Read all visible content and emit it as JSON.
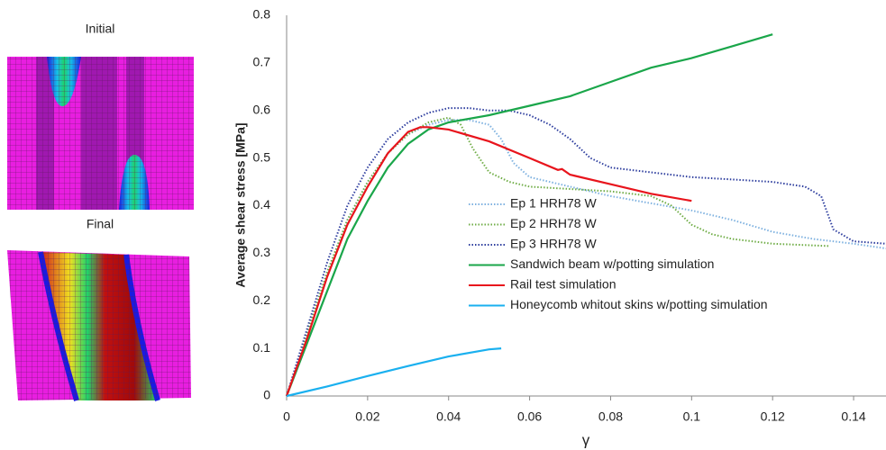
{
  "figure_labels": [
    "Initial",
    "Final"
  ],
  "chart_data": {
    "type": "line",
    "xlabel": "γ",
    "ylabel": "Average shear stress [MPa]",
    "xlim": [
      0,
      0.148
    ],
    "ylim": [
      0,
      0.8
    ],
    "xticks": [
      0,
      0.02,
      0.04,
      0.06,
      0.08,
      0.1,
      0.12,
      0.14
    ],
    "yticks": [
      0,
      0.1,
      0.2,
      0.3,
      0.4,
      0.5,
      0.6,
      0.7,
      0.8
    ],
    "grid": false,
    "series": [
      {
        "name": "Ep 1 HRH78 W",
        "color": "#7fb2e0",
        "style": "dotted",
        "x": [
          0,
          0.005,
          0.01,
          0.015,
          0.02,
          0.025,
          0.03,
          0.035,
          0.04,
          0.045,
          0.05,
          0.053,
          0.056,
          0.06,
          0.07,
          0.08,
          0.09,
          0.1,
          0.11,
          0.12,
          0.13,
          0.14,
          0.148
        ],
        "values": [
          0,
          0.13,
          0.26,
          0.37,
          0.45,
          0.51,
          0.55,
          0.57,
          0.58,
          0.58,
          0.57,
          0.54,
          0.49,
          0.46,
          0.44,
          0.42,
          0.405,
          0.39,
          0.37,
          0.345,
          0.33,
          0.32,
          0.31
        ]
      },
      {
        "name": "Ep 2 HRH78 W",
        "color": "#70ad47",
        "style": "dotted",
        "x": [
          0,
          0.005,
          0.01,
          0.015,
          0.02,
          0.025,
          0.03,
          0.035,
          0.04,
          0.043,
          0.046,
          0.05,
          0.055,
          0.06,
          0.07,
          0.08,
          0.09,
          0.095,
          0.1,
          0.105,
          0.11,
          0.12,
          0.134
        ],
        "values": [
          0,
          0.13,
          0.26,
          0.37,
          0.45,
          0.51,
          0.55,
          0.575,
          0.585,
          0.57,
          0.52,
          0.47,
          0.45,
          0.44,
          0.435,
          0.43,
          0.42,
          0.4,
          0.36,
          0.34,
          0.33,
          0.32,
          0.315
        ]
      },
      {
        "name": "Ep 3 HRH78 W",
        "color": "#2f3f9f",
        "style": "dotted",
        "x": [
          0,
          0.005,
          0.01,
          0.015,
          0.02,
          0.025,
          0.03,
          0.035,
          0.04,
          0.045,
          0.05,
          0.055,
          0.06,
          0.065,
          0.07,
          0.075,
          0.08,
          0.09,
          0.1,
          0.11,
          0.12,
          0.128,
          0.132,
          0.135,
          0.14,
          0.148
        ],
        "values": [
          0,
          0.14,
          0.28,
          0.4,
          0.48,
          0.54,
          0.575,
          0.595,
          0.605,
          0.605,
          0.6,
          0.6,
          0.59,
          0.57,
          0.54,
          0.5,
          0.48,
          0.47,
          0.46,
          0.455,
          0.45,
          0.44,
          0.42,
          0.35,
          0.325,
          0.32
        ]
      },
      {
        "name": "Sandwich beam w/potting simulation",
        "color": "#1aa64a",
        "style": "solid",
        "x": [
          0,
          0.005,
          0.01,
          0.015,
          0.02,
          0.025,
          0.03,
          0.035,
          0.04,
          0.05,
          0.06,
          0.07,
          0.08,
          0.09,
          0.1,
          0.11,
          0.12
        ],
        "values": [
          0,
          0.11,
          0.22,
          0.33,
          0.41,
          0.48,
          0.53,
          0.56,
          0.575,
          0.59,
          0.61,
          0.63,
          0.66,
          0.69,
          0.71,
          0.735,
          0.76
        ]
      },
      {
        "name": "Rail test simulation",
        "color": "#e8141c",
        "style": "solid",
        "x": [
          0,
          0.005,
          0.01,
          0.015,
          0.02,
          0.025,
          0.03,
          0.033,
          0.035,
          0.04,
          0.05,
          0.06,
          0.067,
          0.068,
          0.07,
          0.08,
          0.09,
          0.1
        ],
        "values": [
          0,
          0.12,
          0.25,
          0.36,
          0.44,
          0.51,
          0.555,
          0.565,
          0.565,
          0.56,
          0.535,
          0.5,
          0.475,
          0.477,
          0.465,
          0.445,
          0.425,
          0.41
        ]
      },
      {
        "name": "Honeycomb whitout skins w/potting simulation",
        "color": "#1ab0ef",
        "style": "solid",
        "x": [
          0,
          0.01,
          0.02,
          0.03,
          0.04,
          0.05,
          0.053
        ],
        "values": [
          0,
          0.02,
          0.042,
          0.063,
          0.083,
          0.098,
          0.1
        ]
      }
    ]
  }
}
